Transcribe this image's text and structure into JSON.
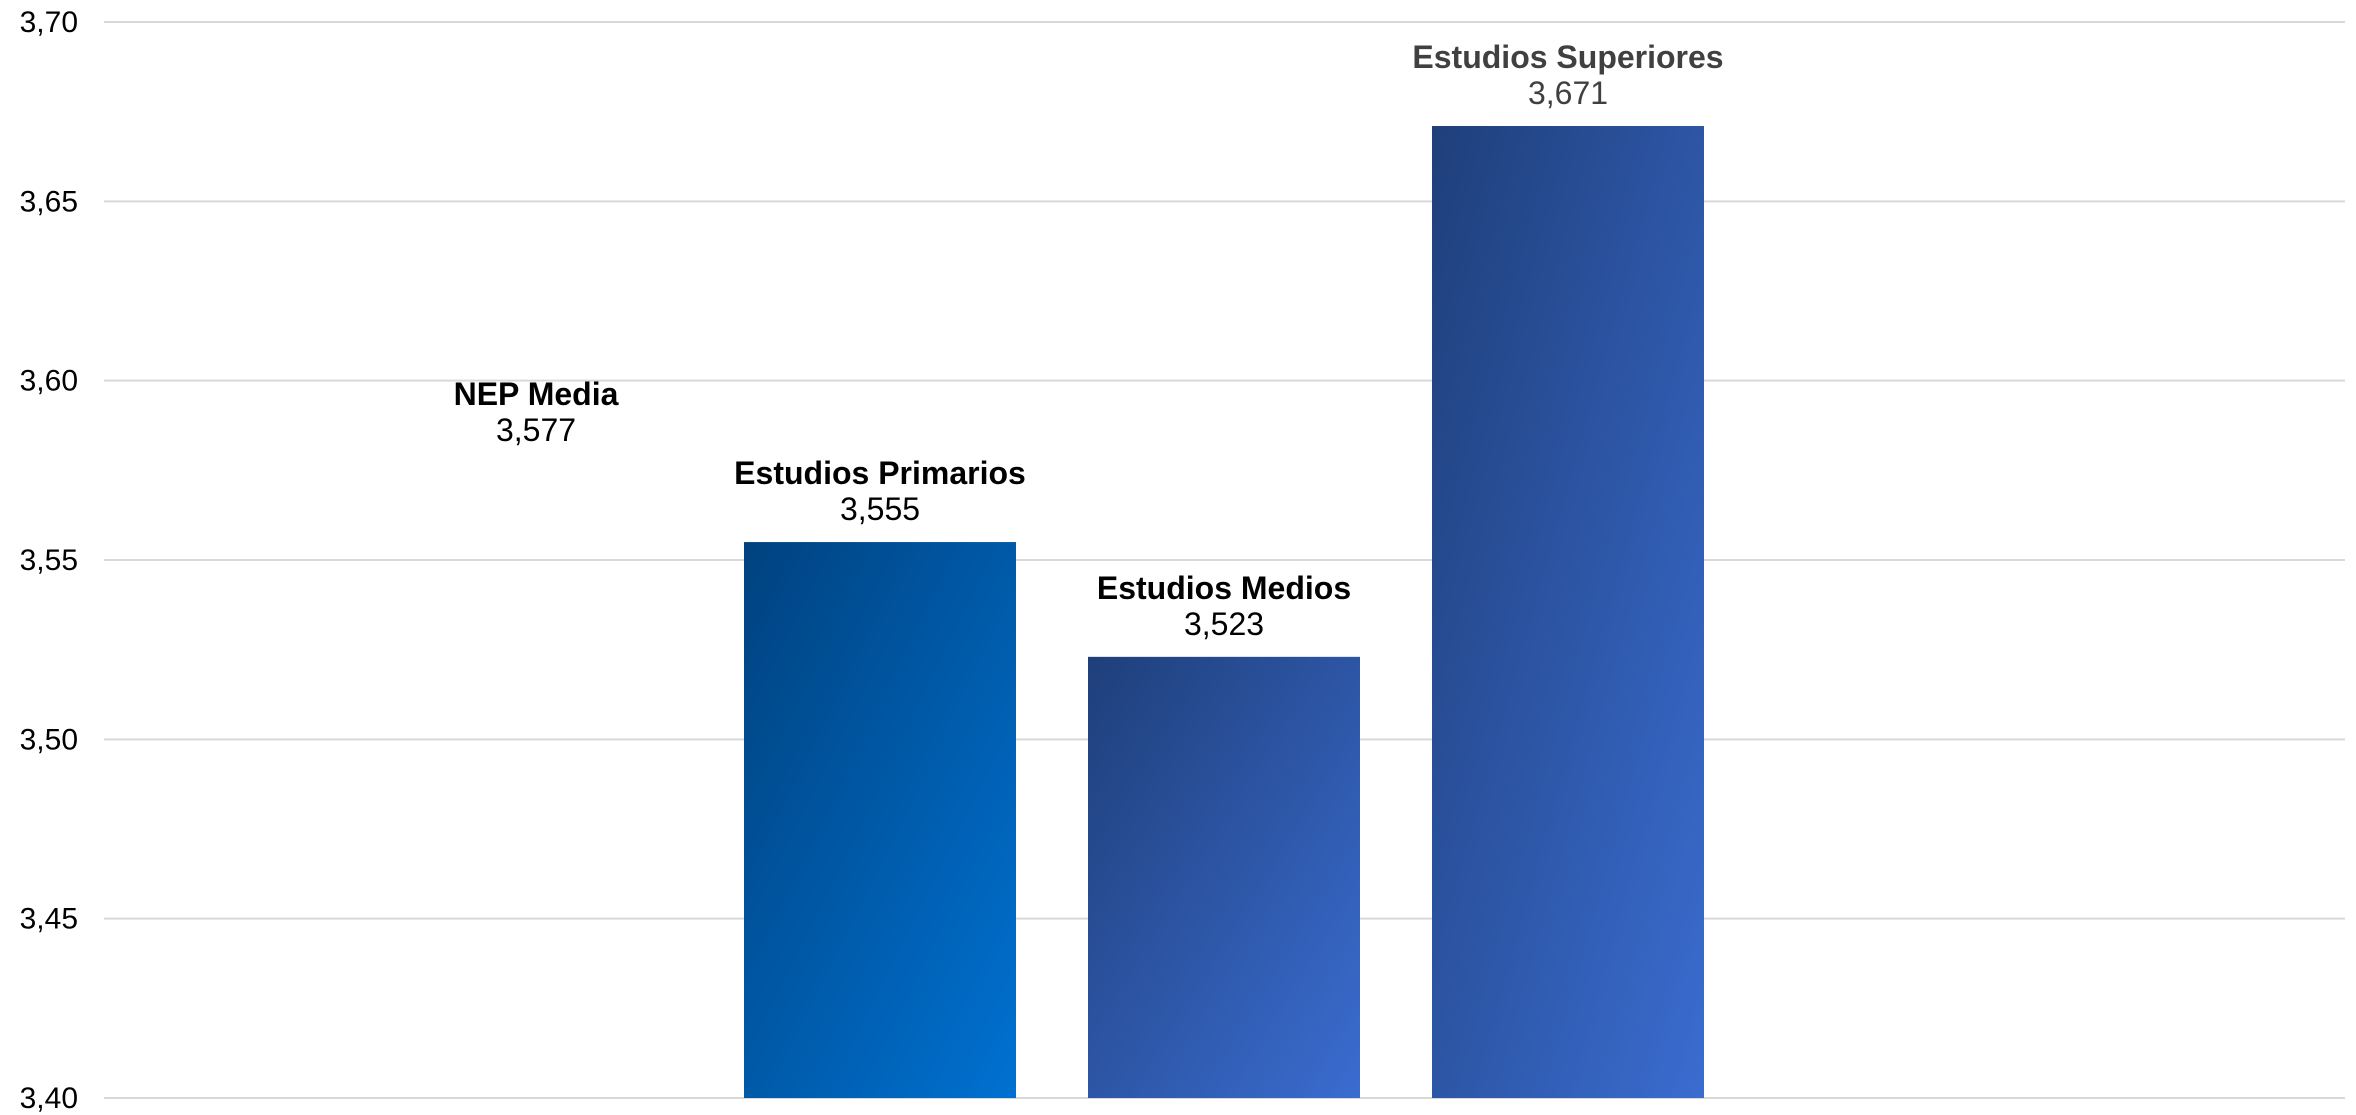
{
  "chart_data": {
    "type": "bar",
    "title": "",
    "xlabel": "",
    "ylabel": "",
    "ylim": [
      3.4,
      3.7
    ],
    "grid": true,
    "y_ticks": [
      "3,40",
      "3,45",
      "3,50",
      "3,55",
      "3,60",
      "3,65",
      "3,70"
    ],
    "y_tick_values": [
      3.4,
      3.45,
      3.5,
      3.55,
      3.6,
      3.65,
      3.7
    ],
    "categories": [
      "NEP Media",
      "Estudios Primarios",
      "Estudios Medios",
      "Estudios Superiores"
    ],
    "values": [
      3.577,
      3.555,
      3.523,
      3.671
    ],
    "value_labels": [
      "3,577",
      "3,555",
      "3,523",
      "3,671"
    ],
    "bar_visible": [
      false,
      true,
      true,
      true
    ],
    "bar_colors": [
      {
        "from": "#ffffff",
        "to": "#ffffff"
      },
      {
        "from": "#00427f",
        "to": "#0071d1"
      },
      {
        "from": "#1f3f7a",
        "to": "#3a6cd0"
      },
      {
        "from": "#1f3f7a",
        "to": "#3a6cd0"
      }
    ],
    "label_colors": [
      "#000000",
      "#000000",
      "#000000",
      "#404040"
    ],
    "gridline_color": "#d9d9d9"
  }
}
